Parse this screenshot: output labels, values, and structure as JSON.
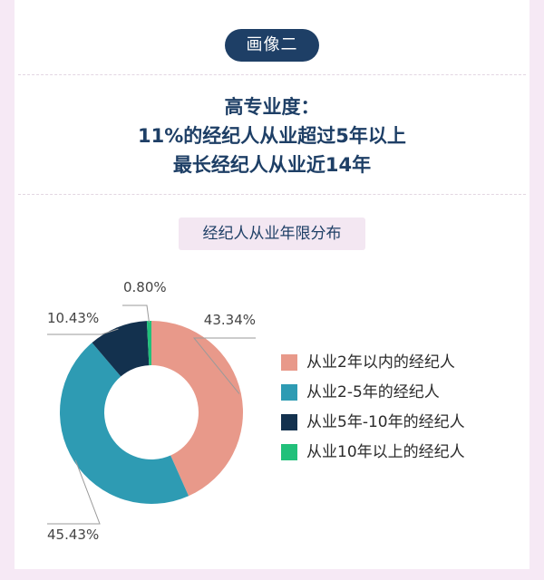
{
  "header": {
    "badge": "画像二",
    "lines": [
      "高专业度：",
      "11%的经纪人从业超过5年以上",
      "最长经纪人从业近14年"
    ]
  },
  "chart_data": {
    "type": "pie",
    "title": "经纪人从业年限分布",
    "donut": true,
    "categories": [
      "从业2年以内的经纪人",
      "从业2-5年的经纪人",
      "从业5年-10年的经纪人",
      "从业10年以上的经纪人"
    ],
    "values": [
      43.34,
      45.43,
      10.43,
      0.8
    ],
    "value_labels": [
      "43.34%",
      "45.43%",
      "10.43%",
      "0.80%"
    ],
    "colors": [
      "#e8998a",
      "#2e9bb3",
      "#13314e",
      "#21c07a"
    ],
    "legend_position": "right"
  }
}
